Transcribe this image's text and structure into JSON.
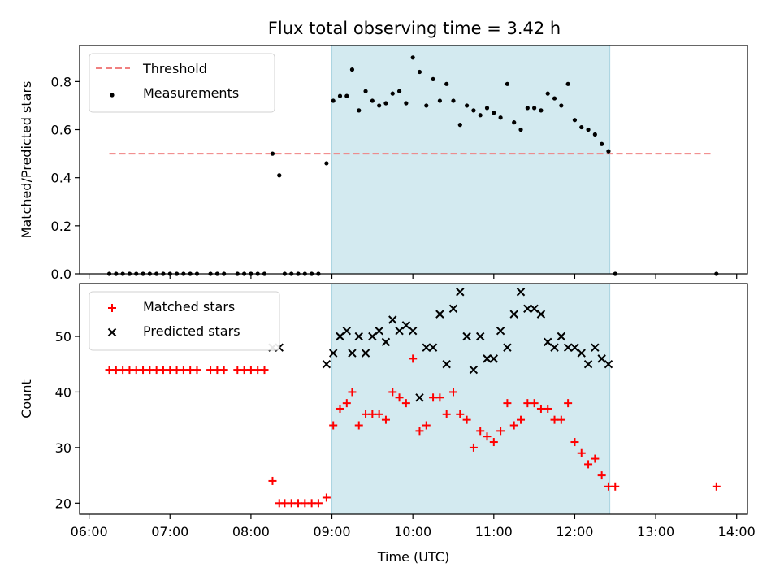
{
  "figure_title": "Flux total observing time = 3.42 h",
  "chart_data": [
    {
      "type": "scatter",
      "ylabel": "Matched/Predicted stars",
      "xlabel": "",
      "ylim": [
        0,
        0.95
      ],
      "xlim": [
        "05:53",
        "14:08"
      ],
      "yticks": [
        0.0,
        0.2,
        0.4,
        0.6,
        0.8
      ],
      "ytick_labels": [
        "0.0",
        "0.2",
        "0.4",
        "0.6",
        "0.8"
      ],
      "grid": false,
      "legend_position": "top-left",
      "highlight_span": {
        "start": "09:00",
        "end": "12:26",
        "color": "#d3eaf0"
      },
      "threshold": {
        "name": "Threshold",
        "value": 0.5,
        "x_start": "06:15",
        "x_end": "13:43",
        "color": "#f08080"
      },
      "series": [
        {
          "name": "Measurements",
          "marker": "dot",
          "color": "#000000",
          "points": [
            [
              "06:15",
              0.0
            ],
            [
              "06:20",
              0.0
            ],
            [
              "06:25",
              0.0
            ],
            [
              "06:30",
              0.0
            ],
            [
              "06:35",
              0.0
            ],
            [
              "06:40",
              0.0
            ],
            [
              "06:45",
              0.0
            ],
            [
              "06:50",
              0.0
            ],
            [
              "06:55",
              0.0
            ],
            [
              "07:00",
              0.0
            ],
            [
              "07:05",
              0.0
            ],
            [
              "07:10",
              0.0
            ],
            [
              "07:15",
              0.0
            ],
            [
              "07:20",
              0.0
            ],
            [
              "07:30",
              0.0
            ],
            [
              "07:35",
              0.0
            ],
            [
              "07:40",
              0.0
            ],
            [
              "07:50",
              0.0
            ],
            [
              "07:55",
              0.0
            ],
            [
              "08:00",
              0.0
            ],
            [
              "08:05",
              0.0
            ],
            [
              "08:10",
              0.0
            ],
            [
              "08:16",
              0.5
            ],
            [
              "08:21",
              0.41
            ],
            [
              "08:25",
              0.0
            ],
            [
              "08:30",
              0.0
            ],
            [
              "08:35",
              0.0
            ],
            [
              "08:40",
              0.0
            ],
            [
              "08:45",
              0.0
            ],
            [
              "08:50",
              0.0
            ],
            [
              "08:56",
              0.46
            ],
            [
              "09:01",
              0.72
            ],
            [
              "09:06",
              0.74
            ],
            [
              "09:11",
              0.74
            ],
            [
              "09:15",
              0.85
            ],
            [
              "09:20",
              0.68
            ],
            [
              "09:25",
              0.76
            ],
            [
              "09:30",
              0.72
            ],
            [
              "09:35",
              0.7
            ],
            [
              "09:40",
              0.71
            ],
            [
              "09:45",
              0.75
            ],
            [
              "09:50",
              0.76
            ],
            [
              "09:55",
              0.71
            ],
            [
              "10:00",
              0.9
            ],
            [
              "10:05",
              0.84
            ],
            [
              "10:10",
              0.7
            ],
            [
              "10:15",
              0.81
            ],
            [
              "10:20",
              0.72
            ],
            [
              "10:25",
              0.79
            ],
            [
              "10:30",
              0.72
            ],
            [
              "10:35",
              0.62
            ],
            [
              "10:40",
              0.7
            ],
            [
              "10:45",
              0.68
            ],
            [
              "10:50",
              0.66
            ],
            [
              "10:55",
              0.69
            ],
            [
              "11:00",
              0.67
            ],
            [
              "11:05",
              0.65
            ],
            [
              "11:10",
              0.79
            ],
            [
              "11:15",
              0.63
            ],
            [
              "11:20",
              0.6
            ],
            [
              "11:25",
              0.69
            ],
            [
              "11:30",
              0.69
            ],
            [
              "11:35",
              0.68
            ],
            [
              "11:40",
              0.75
            ],
            [
              "11:45",
              0.73
            ],
            [
              "11:50",
              0.7
            ],
            [
              "11:55",
              0.79
            ],
            [
              "12:00",
              0.64
            ],
            [
              "12:05",
              0.61
            ],
            [
              "12:10",
              0.6
            ],
            [
              "12:15",
              0.58
            ],
            [
              "12:20",
              0.54
            ],
            [
              "12:25",
              0.51
            ],
            [
              "12:30",
              0.0
            ],
            [
              "13:45",
              0.0
            ]
          ]
        }
      ]
    },
    {
      "type": "scatter",
      "ylabel": "Count",
      "xlabel": "Time (UTC)",
      "ylim": [
        18,
        59.5
      ],
      "xlim": [
        "05:53",
        "14:08"
      ],
      "yticks": [
        20,
        30,
        40,
        50
      ],
      "ytick_labels": [
        "20",
        "30",
        "40",
        "50"
      ],
      "xticks": [
        "06:00",
        "07:00",
        "08:00",
        "09:00",
        "10:00",
        "11:00",
        "12:00",
        "13:00",
        "14:00"
      ],
      "grid": false,
      "legend_position": "top-left",
      "highlight_span": {
        "start": "09:00",
        "end": "12:26",
        "color": "#d3eaf0"
      },
      "series": [
        {
          "name": "Matched stars",
          "marker": "plus",
          "color": "#ff0000",
          "points": [
            [
              "06:15",
              44
            ],
            [
              "06:20",
              44
            ],
            [
              "06:25",
              44
            ],
            [
              "06:30",
              44
            ],
            [
              "06:35",
              44
            ],
            [
              "06:40",
              44
            ],
            [
              "06:45",
              44
            ],
            [
              "06:50",
              44
            ],
            [
              "06:55",
              44
            ],
            [
              "07:00",
              44
            ],
            [
              "07:05",
              44
            ],
            [
              "07:10",
              44
            ],
            [
              "07:15",
              44
            ],
            [
              "07:20",
              44
            ],
            [
              "07:30",
              44
            ],
            [
              "07:35",
              44
            ],
            [
              "07:40",
              44
            ],
            [
              "07:50",
              44
            ],
            [
              "07:55",
              44
            ],
            [
              "08:00",
              44
            ],
            [
              "08:05",
              44
            ],
            [
              "08:10",
              44
            ],
            [
              "08:16",
              24
            ],
            [
              "08:21",
              20
            ],
            [
              "08:25",
              20
            ],
            [
              "08:30",
              20
            ],
            [
              "08:35",
              20
            ],
            [
              "08:40",
              20
            ],
            [
              "08:45",
              20
            ],
            [
              "08:50",
              20
            ],
            [
              "08:56",
              21
            ],
            [
              "09:01",
              34
            ],
            [
              "09:06",
              37
            ],
            [
              "09:11",
              38
            ],
            [
              "09:15",
              40
            ],
            [
              "09:20",
              34
            ],
            [
              "09:25",
              36
            ],
            [
              "09:30",
              36
            ],
            [
              "09:35",
              36
            ],
            [
              "09:40",
              35
            ],
            [
              "09:45",
              40
            ],
            [
              "09:50",
              39
            ],
            [
              "09:55",
              38
            ],
            [
              "10:00",
              46
            ],
            [
              "10:05",
              33
            ],
            [
              "10:10",
              34
            ],
            [
              "10:15",
              39
            ],
            [
              "10:20",
              39
            ],
            [
              "10:25",
              36
            ],
            [
              "10:30",
              40
            ],
            [
              "10:35",
              36
            ],
            [
              "10:40",
              35
            ],
            [
              "10:45",
              30
            ],
            [
              "10:50",
              33
            ],
            [
              "10:55",
              32
            ],
            [
              "11:00",
              31
            ],
            [
              "11:05",
              33
            ],
            [
              "11:10",
              38
            ],
            [
              "11:15",
              34
            ],
            [
              "11:20",
              35
            ],
            [
              "11:25",
              38
            ],
            [
              "11:30",
              38
            ],
            [
              "11:35",
              37
            ],
            [
              "11:40",
              37
            ],
            [
              "11:45",
              35
            ],
            [
              "11:50",
              35
            ],
            [
              "11:55",
              38
            ],
            [
              "12:00",
              31
            ],
            [
              "12:05",
              29
            ],
            [
              "12:10",
              27
            ],
            [
              "12:15",
              28
            ],
            [
              "12:20",
              25
            ],
            [
              "12:25",
              23
            ],
            [
              "12:30",
              23
            ],
            [
              "13:45",
              23
            ]
          ]
        },
        {
          "name": "Predicted stars",
          "marker": "x",
          "color": "#000000",
          "points": [
            [
              "08:16",
              48
            ],
            [
              "08:21",
              48
            ],
            [
              "08:56",
              45
            ],
            [
              "09:01",
              47
            ],
            [
              "09:06",
              50
            ],
            [
              "09:11",
              51
            ],
            [
              "09:15",
              47
            ],
            [
              "09:20",
              50
            ],
            [
              "09:25",
              47
            ],
            [
              "09:30",
              50
            ],
            [
              "09:35",
              51
            ],
            [
              "09:40",
              49
            ],
            [
              "09:45",
              53
            ],
            [
              "09:50",
              51
            ],
            [
              "09:55",
              52
            ],
            [
              "10:00",
              51
            ],
            [
              "10:05",
              39
            ],
            [
              "10:10",
              48
            ],
            [
              "10:15",
              48
            ],
            [
              "10:20",
              54
            ],
            [
              "10:25",
              45
            ],
            [
              "10:30",
              55
            ],
            [
              "10:35",
              58
            ],
            [
              "10:40",
              50
            ],
            [
              "10:45",
              44
            ],
            [
              "10:50",
              50
            ],
            [
              "10:55",
              46
            ],
            [
              "11:00",
              46
            ],
            [
              "11:05",
              51
            ],
            [
              "11:10",
              48
            ],
            [
              "11:15",
              54
            ],
            [
              "11:20",
              58
            ],
            [
              "11:25",
              55
            ],
            [
              "11:30",
              55
            ],
            [
              "11:35",
              54
            ],
            [
              "11:40",
              49
            ],
            [
              "11:45",
              48
            ],
            [
              "11:50",
              50
            ],
            [
              "11:55",
              48
            ],
            [
              "12:00",
              48
            ],
            [
              "12:05",
              47
            ],
            [
              "12:10",
              45
            ],
            [
              "12:15",
              48
            ],
            [
              "12:20",
              46
            ],
            [
              "12:25",
              45
            ]
          ]
        }
      ]
    }
  ]
}
